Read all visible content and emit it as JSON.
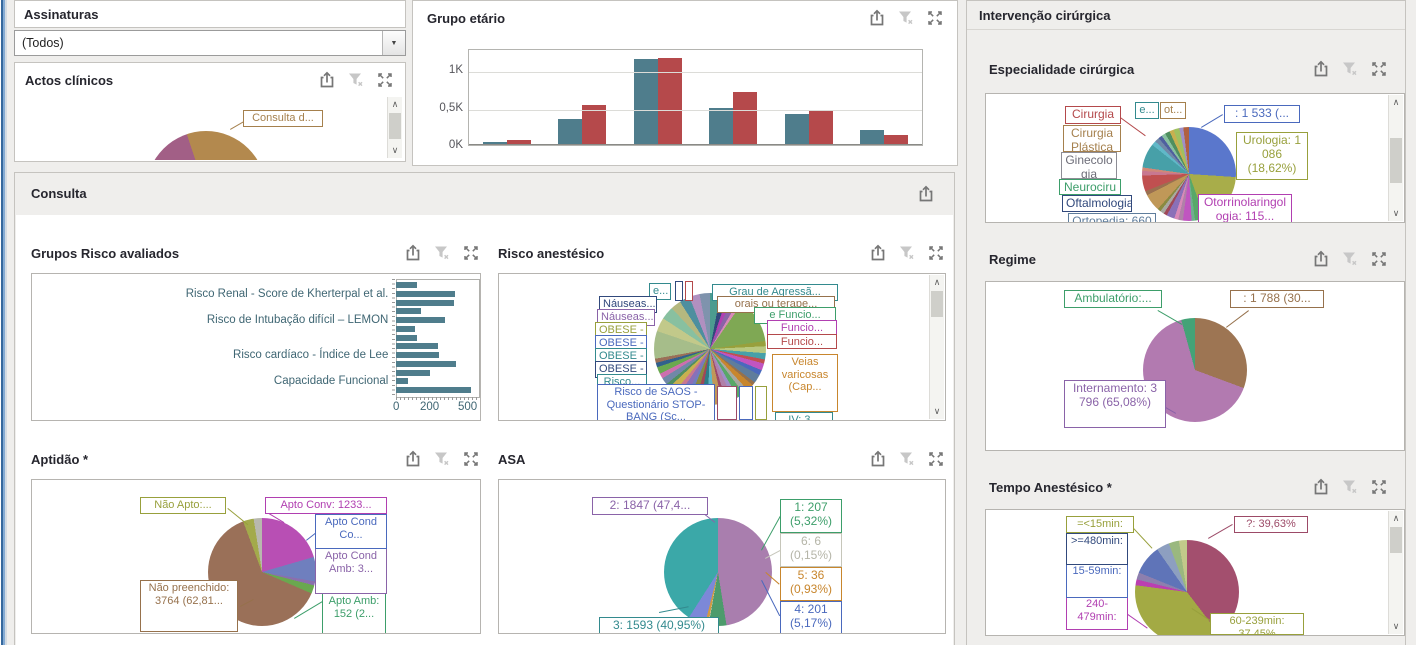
{
  "colors": {
    "bar_teal": "#4f7d8c",
    "bar_red": "#b5494b",
    "background": "#efeeec",
    "panel_border": "#c5c3bf",
    "title_text": "#26262e"
  },
  "assinaturas": {
    "title": "Assinaturas",
    "value": "(Todos)"
  },
  "actos": {
    "title": "Actos clínicos",
    "callout": "Consulta d...",
    "chart_data": {
      "type": "pie",
      "note": "only top arc visible in panel",
      "slices": [
        {
          "label": "Consulta d...",
          "pct": 20.8,
          "color": "#b3894e"
        },
        {
          "label": "",
          "pct": 61.5,
          "color": "#c9c3ba"
        },
        {
          "label": "",
          "pct": 12.5,
          "color": "#a25f86"
        },
        {
          "label": "",
          "pct": 5.2,
          "color": "#b3894e"
        }
      ]
    }
  },
  "grupo_etario": {
    "title": "Grupo etário",
    "yticks": [
      "1K",
      "0,5K",
      "0K"
    ],
    "chart_data": {
      "type": "bar",
      "categories": [
        "",
        "",
        "",
        "",
        "",
        ""
      ],
      "series": [
        {
          "name": "series-1",
          "color": "#4f7d8c",
          "values": [
            40,
            350,
            1180,
            500,
            430,
            210
          ]
        },
        {
          "name": "series-2",
          "color": "#b5494b",
          "values": [
            75,
            550,
            1190,
            720,
            480,
            140
          ]
        }
      ],
      "ylim": [
        0,
        1300
      ],
      "ytick_values": [
        0,
        500,
        1000
      ],
      "grid": true,
      "legend": "none"
    }
  },
  "consulta": {
    "title": "Consulta"
  },
  "grupos_risco": {
    "title": "Grupos Risco avaliados",
    "chart_data": {
      "type": "bar-horizontal",
      "xticks": [
        "0",
        "200",
        "500"
      ],
      "xtick_values": [
        0,
        200,
        500
      ],
      "xlim": [
        0,
        560
      ],
      "bar_color": "#4f7d8c",
      "values": [
        150,
        420,
        415,
        175,
        350,
        135,
        150,
        300,
        310,
        430,
        245,
        85,
        540
      ],
      "row_labels": [
        "",
        "Risco Renal - Score de Kherterpal et al.",
        "",
        "",
        "Risco de Intubação difícil – LEMON",
        "",
        "",
        "",
        "Risco cardíaco - Índice de Lee",
        "",
        "",
        "Capacidade Funcional",
        ""
      ]
    }
  },
  "risco_anestesico": {
    "title": "Risco anestésico",
    "callouts": {
      "e": "e...",
      "nauseas1": "Náuseas...",
      "nauseas2": "Náuseas...",
      "obese1": "OBESE -",
      "obese2": "OBESE -",
      "obese3": "OBESE -",
      "obese4": "OBESE -",
      "risco": "Risco...",
      "saos": "Risco de SAOS - Questionário STOP-BANG (Sc...",
      "grau": "Grau de Agressã...",
      "orais": "orais ou terape...",
      "efuncio": "e Funcio...",
      "funcio1": "Funcio...",
      "funcio2": "Funcio...",
      "veias": "Veias varicosas (Cap...",
      "iv": "IV: 3..."
    },
    "chart_data": {
      "type": "pie",
      "slices": [
        {
          "pct": 3,
          "color": "#4d9b8f"
        },
        {
          "pct": 2,
          "color": "#31497c"
        },
        {
          "pct": 1.5,
          "color": "#b13fb1"
        },
        {
          "pct": 2,
          "color": "#8a63a8"
        },
        {
          "pct": 1.2,
          "color": "#d88ab8"
        },
        {
          "pct": 13,
          "color": "#7fa854"
        },
        {
          "pct": 1.5,
          "color": "#98a03c"
        },
        {
          "pct": 2,
          "color": "#b8c87f"
        },
        {
          "pct": 1.8,
          "color": "#47a0a8"
        },
        {
          "pct": 1.2,
          "color": "#c05050"
        },
        {
          "pct": 2,
          "color": "#c055c0"
        },
        {
          "pct": 1.5,
          "color": "#4a69bd"
        },
        {
          "pct": 2.5,
          "color": "#5f7d9c"
        },
        {
          "pct": 1,
          "color": "#96714c"
        },
        {
          "pct": 2,
          "color": "#c8862d"
        },
        {
          "pct": 1.5,
          "color": "#a8a8a0"
        },
        {
          "pct": 2,
          "color": "#58a868"
        },
        {
          "pct": 1.5,
          "color": "#9f8fc8"
        },
        {
          "pct": 2,
          "color": "#b080a8"
        },
        {
          "pct": 1.2,
          "color": "#9c4a67"
        },
        {
          "pct": 2.5,
          "color": "#c09858"
        },
        {
          "pct": 1.8,
          "color": "#60b8c8"
        },
        {
          "pct": 2,
          "color": "#2e7d86"
        },
        {
          "pct": 1.5,
          "color": "#a04858"
        },
        {
          "pct": 2,
          "color": "#8a8a40"
        },
        {
          "pct": 1.3,
          "color": "#6f7fbe"
        },
        {
          "pct": 2,
          "color": "#8a70b8"
        },
        {
          "pct": 1.5,
          "color": "#c87890"
        },
        {
          "pct": 2,
          "color": "#c8b050"
        },
        {
          "pct": 1.2,
          "color": "#4f8f5f"
        },
        {
          "pct": 2,
          "color": "#7088a8"
        },
        {
          "pct": 1.5,
          "color": "#cc6fae"
        },
        {
          "pct": 2,
          "color": "#6aa84f"
        },
        {
          "pct": 1.3,
          "color": "#31608c"
        },
        {
          "pct": 1.2,
          "color": "#9a7058"
        },
        {
          "pct": 8,
          "color": "#a6bd8a"
        },
        {
          "pct": 4,
          "color": "#c2c98a"
        },
        {
          "pct": 3.8,
          "color": "#88c0a0"
        },
        {
          "pct": 3,
          "color": "#b5b87f"
        },
        {
          "pct": 3,
          "color": "#4d8f9f"
        },
        {
          "pct": 3,
          "color": "#b090c0"
        },
        {
          "pct": 3,
          "color": "#7f93ad"
        }
      ]
    }
  },
  "aptidao": {
    "title": "Aptidão *",
    "callouts": {
      "nao_apto": "Não Apto:...",
      "apto_conv": "Apto Conv: 1233...",
      "apto_cond_co": "Apto Cond Co...",
      "apto_cond_amb": "Apto Cond Amb: 3...",
      "apto_amb": "Apto Amb: 152 (2...",
      "nao_preenchido": "Não preenchido: 3764 (62,81..."
    },
    "chart_data": {
      "type": "pie",
      "slices": [
        {
          "label": "Apto Conv",
          "value": 1233,
          "pct": 20.5,
          "color": "#b84fb4"
        },
        {
          "label": "Apto Cond Co...",
          "pct": 7.3,
          "color": "#6f7fbe"
        },
        {
          "label": "Apto Cond Amb",
          "value": 3,
          "pct": 1.2,
          "color": "#8a6fae"
        },
        {
          "label": "Apto Amb",
          "value": 152,
          "pct": 2.5,
          "color": "#6aa84f"
        },
        {
          "label": "Não preenchido",
          "value": 3764,
          "pct": 62.81,
          "color": "#9a7058"
        },
        {
          "label": "Não Apto",
          "pct": 3.2,
          "color": "#a3aa4b"
        },
        {
          "label": "",
          "pct": 2.49,
          "color": "#b8b8ae"
        }
      ]
    }
  },
  "asa": {
    "title": "ASA",
    "callouts": {
      "c1": "1: 207 (5,32%)",
      "c2": "2: 1847 (47,4...",
      "c3": "3: 1593 (40,95%)",
      "c4": "4: 201 (5,17%)",
      "c5": "5: 36 (0,93%)",
      "c6": "6: 6 (0,15%)"
    },
    "chart_data": {
      "type": "pie",
      "slices": [
        {
          "label": "2",
          "value": 1847,
          "pct": 47.48,
          "color": "#a97eae"
        },
        {
          "label": "1",
          "value": 207,
          "pct": 5.32,
          "color": "#4d9b6c"
        },
        {
          "label": "6",
          "value": 6,
          "pct": 0.15,
          "color": "#d8d8ce"
        },
        {
          "label": "5",
          "value": 36,
          "pct": 0.93,
          "color": "#d29a43"
        },
        {
          "label": "4",
          "value": 201,
          "pct": 5.17,
          "color": "#7c88d8"
        },
        {
          "label": "3",
          "value": 1593,
          "pct": 40.95,
          "color": "#3ba8a8"
        }
      ]
    }
  },
  "intervencao": {
    "title": "Intervenção cirúrgica"
  },
  "especialidade": {
    "title": "Especialidade cirúrgica",
    "callouts": {
      "cirurgia": "Cirurgia",
      "cirurgia_plastica": "Cirurgia Plástica",
      "ginecologia": "Ginecologia",
      "neurocirurgia": "Neurociru",
      "oftalmologia": "Oftalmologia",
      "ortopedia": "Ortopedia: 660",
      "unnamed": ": 1 533 (...",
      "urologia": "Urologia: 1 086 (18,62%)",
      "otorrino": "Otorrinolaringologia: 115...",
      "e": "e...",
      "ot": "ot..."
    },
    "chart_data": {
      "type": "pie",
      "slices": [
        {
          "label": "",
          "value": 1533,
          "pct": 26.3,
          "color": "#5a77cc"
        },
        {
          "label": "Urologia",
          "value": 1086,
          "pct": 18.62,
          "color": "#a8ad4a"
        },
        {
          "pct": 3.5,
          "color": "#58a868"
        },
        {
          "pct": 1.2,
          "color": "#6fae8f"
        },
        {
          "pct": 3.0,
          "color": "#c055c0"
        },
        {
          "pct": 1.6,
          "color": "#b080a8"
        },
        {
          "pct": 1.4,
          "color": "#d88ab8"
        },
        {
          "pct": 2.8,
          "color": "#8a70b8"
        },
        {
          "pct": 1.2,
          "color": "#a04858"
        },
        {
          "pct": 1.4,
          "color": "#a8a8a0"
        },
        {
          "pct": 1.2,
          "color": "#8a8a40"
        },
        {
          "pct": 6.0,
          "color": "#c09858"
        },
        {
          "pct": 1.5,
          "color": "#9a7050"
        },
        {
          "pct": 5.5,
          "color": "#c05050"
        },
        {
          "pct": 1.6,
          "color": "#c87890"
        },
        {
          "pct": 1.2,
          "color": "#d08878"
        },
        {
          "pct": 8.5,
          "color": "#47a0a8"
        },
        {
          "pct": 1.6,
          "color": "#60b8c8"
        },
        {
          "pct": 1.6,
          "color": "#7088a8"
        },
        {
          "pct": 1.3,
          "color": "#4f5f9f"
        },
        {
          "pct": 1.4,
          "color": "#88c0a0"
        },
        {
          "pct": 1.7,
          "color": "#4f8f5f"
        },
        {
          "pct": 1.5,
          "color": "#c8b050"
        },
        {
          "pct": 2.0,
          "color": "#a0c060"
        },
        {
          "pct": 1.4,
          "color": "#9f8fc8"
        },
        {
          "pct": 1.98,
          "color": "#b06040"
        }
      ]
    }
  },
  "regime": {
    "title": "Regime",
    "callouts": {
      "ambulatorio": "Ambulatório:...",
      "unnamed": ": 1 788 (30...",
      "internamento": "Internamento: 3 796 (65,08%)"
    },
    "chart_data": {
      "type": "pie",
      "slices": [
        {
          "label": "",
          "value": 1788,
          "pct": 30.65,
          "color": "#9d7553"
        },
        {
          "label": "Internamento",
          "value": 3796,
          "pct": 65.08,
          "color": "#b27ab0"
        },
        {
          "label": "Ambulatório",
          "pct": 4.27,
          "color": "#44a377"
        }
      ]
    }
  },
  "tempo": {
    "title": "Tempo Anestésico *",
    "callouts": {
      "m15": "=<15min:",
      "m480": ">=480min:",
      "m15_59": "15-59min:",
      "m240_479": "240-479min:",
      "unknown": "?: 39,63%",
      "m60_239": "60-239min: 37,45%"
    },
    "chart_data": {
      "type": "pie",
      "slices": [
        {
          "label": "?",
          "pct": 39.63,
          "color": "#a34f6e"
        },
        {
          "label": "60-239min",
          "pct": 37.45,
          "color": "#a3aa44"
        },
        {
          "label": "240-479min",
          "pct": 1.8,
          "color": "#bb3fb0"
        },
        {
          "label": "",
          "pct": 2.2,
          "color": "#8d7fae"
        },
        {
          "label": "15-59min",
          "pct": 9.2,
          "color": "#5f74b8"
        },
        {
          "label": ">=480min",
          "pct": 4.0,
          "color": "#8d9fc0"
        },
        {
          "label": "=<15min",
          "pct": 3.2,
          "color": "#9ab87f"
        },
        {
          "label": "",
          "pct": 2.52,
          "color": "#c2c98a"
        }
      ]
    }
  }
}
